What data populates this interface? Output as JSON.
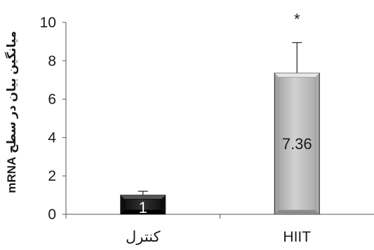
{
  "chart_data": {
    "type": "bar",
    "ylabel": "میانگین بیان در سطح mRNA",
    "ylim": [
      0,
      10
    ],
    "yticks": [
      0,
      2,
      4,
      6,
      8,
      10
    ],
    "categories": [
      "کنترل",
      "HIIT"
    ],
    "values": [
      1,
      7.36
    ],
    "error_upper": [
      1.2,
      8.95
    ],
    "data_labels": [
      "1",
      "7.36"
    ],
    "bar_colors": [
      "#1e1e1e",
      "#c4c4c4"
    ],
    "bar_label_colors": [
      "#ffffff",
      "#1a1a1a"
    ],
    "significance": [
      "",
      "*"
    ],
    "grid": false,
    "legend": "none"
  }
}
